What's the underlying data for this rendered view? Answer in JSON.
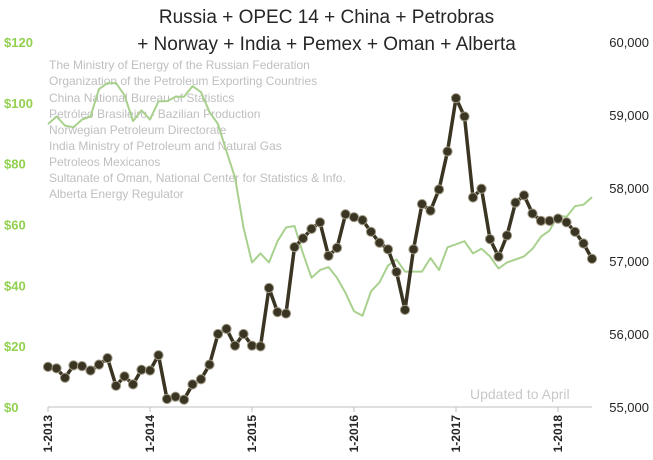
{
  "chart_data": {
    "type": "line",
    "title_lines": [
      "Russia + OPEC 14 + China + Petrobras",
      "+ Norway + India + Pemex + Oman + Alberta"
    ],
    "sources": [
      "The Ministry of Energy of the Russian Federation",
      "Organization of the Petroleum Exporting Countries",
      "China National Bureau of Statistics",
      "Petróleo Brasileiro - Bazilian Production",
      "Norwegian Petroleum Directorate",
      "India Ministry of Petroleum and Natural Gas",
      "Petroleos Mexicanos",
      "Sultanate of Oman, National Center for Statistics & Info.",
      "Alberta Energy Regulator"
    ],
    "annotation": "Updated to April",
    "x_tick_labels": [
      "1-2013",
      "1-2014",
      "1-2015",
      "1-2016",
      "1-2017",
      "1-2018"
    ],
    "left_axis": {
      "range": [
        0,
        120
      ],
      "ticks": [
        "$0",
        "$20",
        "$40",
        "$60",
        "$80",
        "$100",
        "$120"
      ],
      "color": "#92d050"
    },
    "right_axis": {
      "range": [
        55000,
        60000
      ],
      "ticks": [
        "55,000",
        "56,000",
        "57,000",
        "58,000",
        "59,000",
        "60,000"
      ]
    },
    "x_range": [
      0,
      64
    ],
    "grid": false,
    "series": [
      {
        "axis": "right",
        "color": "#3a3423",
        "markers": true,
        "values": [
          55550,
          55530,
          55400,
          55570,
          55560,
          55500,
          55580,
          55670,
          55290,
          55420,
          55310,
          55510,
          55500,
          55710,
          55110,
          55140,
          55100,
          55310,
          55380,
          55580,
          56000,
          56070,
          55840,
          56000,
          55840,
          55830,
          56630,
          56300,
          56280,
          57190,
          57310,
          57440,
          57530,
          57070,
          57180,
          57640,
          57600,
          57560,
          57400,
          57250,
          57160,
          56850,
          56330,
          57160,
          57780,
          57690,
          57980,
          58500,
          59230,
          58980,
          57870,
          57990,
          57300,
          57060,
          57350,
          57800,
          57900,
          57650,
          57550,
          57550,
          57580,
          57530,
          57400,
          57240,
          57030
        ]
      },
      {
        "axis": "left",
        "color": "#a9d18e",
        "markers": false,
        "values": [
          93.0,
          95.5,
          92.5,
          92.0,
          94.5,
          95.5,
          104.5,
          106.5,
          106.5,
          102.5,
          94.0,
          97.5,
          94.5,
          100.5,
          100.5,
          102.0,
          102.0,
          105.5,
          103.5,
          97.0,
          93.0,
          84.0,
          75.5,
          59.0,
          47.5,
          50.5,
          47.5,
          54.5,
          59.0,
          59.5,
          50.5,
          42.5,
          45.0,
          46.0,
          42.5,
          37.5,
          31.5,
          30.0,
          38.0,
          41.0,
          46.5,
          48.5,
          44.5,
          44.5,
          44.5,
          49.0,
          45.0,
          52.5,
          53.5,
          54.5,
          50.5,
          52.0,
          49.5,
          45.5,
          47.5,
          48.5,
          49.5,
          52.0,
          56.0,
          58.0,
          63.0,
          62.5,
          66.0,
          66.5,
          69.0
        ]
      }
    ]
  }
}
